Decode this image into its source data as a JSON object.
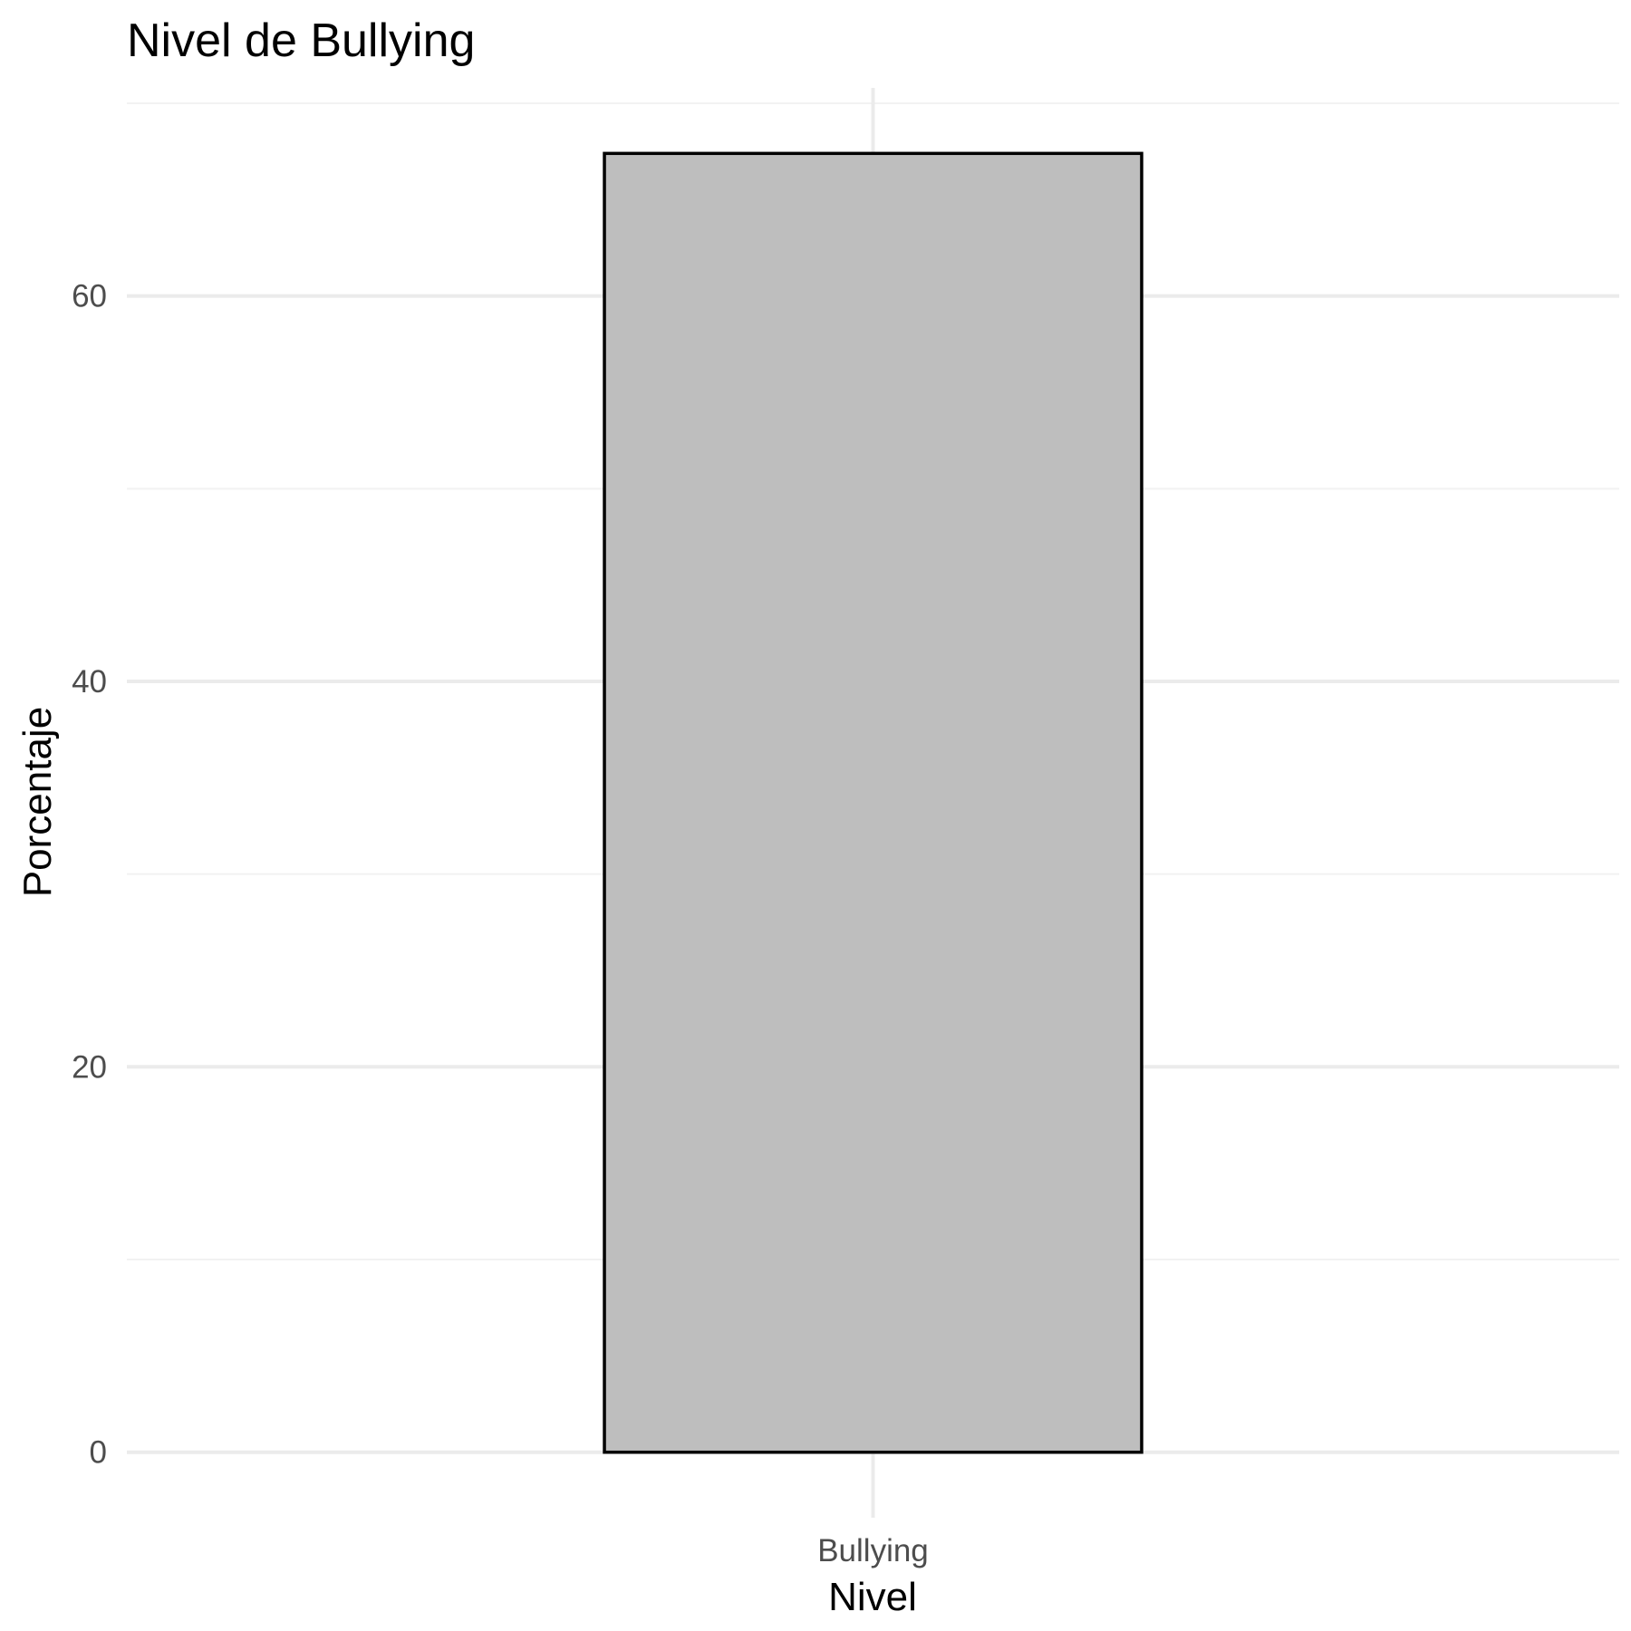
{
  "chart_data": {
    "type": "bar",
    "title": "Nivel de Bullying",
    "xlabel": "Nivel",
    "ylabel": "Porcentaje",
    "categories": [
      "Bullying"
    ],
    "values": [
      67.4
    ],
    "ylim": [
      -3.4,
      70.8
    ],
    "yticks": [
      0,
      20,
      40,
      60
    ],
    "ytick_labels": [
      "0",
      "20",
      "40",
      "60"
    ],
    "grid": true,
    "legend": "none",
    "colors": {
      "bar_fill": "#bebebe",
      "bar_outline": "#000000",
      "grid_major": "#ebebeb",
      "grid_minor": "#f2f2f2",
      "tick_label": "#4d4d4d"
    }
  }
}
